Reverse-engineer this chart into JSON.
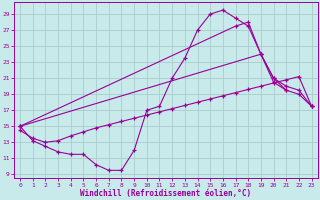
{
  "bg_color": "#c8eaea",
  "grid_color": "#a8cccc",
  "line_color": "#990099",
  "xlabel": "Windchill (Refroidissement éolien,°C)",
  "xlim": [
    -0.5,
    23.5
  ],
  "ylim": [
    8.5,
    30.5
  ],
  "xticks": [
    0,
    1,
    2,
    3,
    4,
    5,
    6,
    7,
    8,
    9,
    10,
    11,
    12,
    13,
    14,
    15,
    16,
    17,
    18,
    19,
    20,
    21,
    22,
    23
  ],
  "yticks": [
    9,
    11,
    13,
    15,
    17,
    19,
    21,
    23,
    25,
    27,
    29
  ],
  "line1_x": [
    0,
    1,
    2,
    3,
    4,
    5,
    6,
    7,
    8,
    9,
    10,
    11,
    12,
    13,
    14,
    15,
    16,
    17,
    18,
    19,
    20,
    21
  ],
  "line1_y": [
    15,
    13.2,
    12.5,
    11.8,
    11.5,
    11.5,
    10.2,
    9.5,
    9.5,
    12.0,
    17.0,
    17.5,
    21.0,
    23.5,
    27.0,
    29.0,
    29.5,
    28.5,
    27.5,
    24.0,
    20.5,
    19.5
  ],
  "line2_x": [
    0,
    1,
    2,
    3,
    4,
    5,
    6,
    7,
    8,
    9,
    10,
    11,
    12,
    13,
    14,
    15,
    16,
    17,
    18,
    19,
    20,
    21,
    22,
    23
  ],
  "line2_y": [
    14.5,
    13.5,
    13.0,
    13.2,
    13.8,
    14.3,
    14.8,
    15.2,
    15.6,
    16.0,
    16.4,
    16.8,
    17.2,
    17.6,
    18.0,
    18.4,
    18.8,
    19.2,
    19.6,
    20.0,
    20.4,
    20.8,
    21.2,
    17.5
  ],
  "line3_x": [
    0,
    17,
    18,
    19,
    20,
    21,
    22,
    23
  ],
  "line3_y": [
    15,
    27.5,
    28.0,
    24.0,
    21.0,
    20.0,
    19.5,
    17.5
  ],
  "line4_x": [
    0,
    19,
    20,
    21,
    22,
    23
  ],
  "line4_y": [
    15,
    24.0,
    21.0,
    19.5,
    19.0,
    17.5
  ]
}
